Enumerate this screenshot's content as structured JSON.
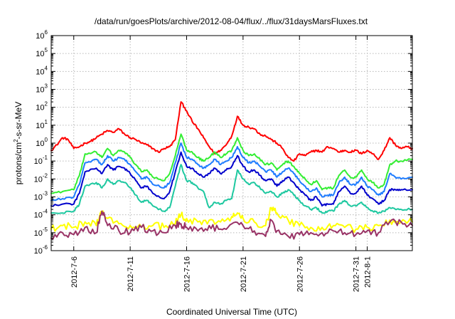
{
  "chart_data": {
    "type": "line",
    "title": "/data/run/goesPlots/archive/2012-08-04/flux/../flux/31daysMarsFluxes.txt",
    "xlabel": "Coordinated Universal Time (UTC)",
    "ylabel_parts": {
      "base": "protons/cm",
      "sup": "2",
      "rest": "-s-sr-MeV"
    },
    "xlim": [
      "2012-07-04",
      "2012-08-05"
    ],
    "ylim_exp": [
      -6,
      6
    ],
    "y_scale": "log",
    "grid": true,
    "x_ticks": [
      {
        "date": "2012-07-06",
        "label": "2012-7-6"
      },
      {
        "date": "2012-07-11",
        "label": "2012-7-11"
      },
      {
        "date": "2012-07-16",
        "label": "2012-7-16"
      },
      {
        "date": "2012-07-21",
        "label": "2012-7-21"
      },
      {
        "date": "2012-07-26",
        "label": "2012-7-26"
      },
      {
        "date": "2012-07-31",
        "label": "2012-7-31"
      },
      {
        "date": "2012-08-01",
        "label": "2012-8-1"
      }
    ],
    "y_ticks": [
      {
        "exp": 6,
        "base": "10",
        "sup": "6"
      },
      {
        "exp": 5,
        "base": "10",
        "sup": "5"
      },
      {
        "exp": 4,
        "base": "10",
        "sup": "4"
      },
      {
        "exp": 3,
        "base": "10",
        "sup": "3"
      },
      {
        "exp": 2,
        "base": "10",
        "sup": "2"
      },
      {
        "exp": 1,
        "base": "10",
        "sup": "1"
      },
      {
        "exp": 0,
        "base": "10",
        "sup": "0"
      },
      {
        "exp": -1,
        "base": "10",
        "sup": "-1"
      },
      {
        "exp": -2,
        "base": "10",
        "sup": "-2"
      },
      {
        "exp": -3,
        "base": "10",
        "sup": "-3"
      },
      {
        "exp": -4,
        "base": "10",
        "sup": "-4"
      },
      {
        "exp": -5,
        "base": "10",
        "sup": "-5"
      },
      {
        "exp": -6,
        "base": "10",
        "sup": "-6"
      }
    ],
    "series": [
      {
        "color": "#ff0000",
        "x": [
          "2012-07-04",
          "2012-07-04T12:00",
          "2012-07-05",
          "2012-07-05T12:00",
          "2012-07-06",
          "2012-07-06T12:00",
          "2012-07-07",
          "2012-07-07T12:00",
          "2012-07-08",
          "2012-07-08T12:00",
          "2012-07-09",
          "2012-07-09T12:00",
          "2012-07-10",
          "2012-07-10T12:00",
          "2012-07-11",
          "2012-07-11T12:00",
          "2012-07-12",
          "2012-07-12T12:00",
          "2012-07-13",
          "2012-07-13T12:00",
          "2012-07-14",
          "2012-07-14T12:00",
          "2012-07-15",
          "2012-07-15T12:00",
          "2012-07-16",
          "2012-07-16T12:00",
          "2012-07-17",
          "2012-07-17T12:00",
          "2012-07-18",
          "2012-07-18T12:00",
          "2012-07-19",
          "2012-07-19T12:00",
          "2012-07-20",
          "2012-07-20T12:00",
          "2012-07-21",
          "2012-07-21T12:00",
          "2012-07-22",
          "2012-07-22T12:00",
          "2012-07-23",
          "2012-07-23T12:00",
          "2012-07-24",
          "2012-07-24T12:00",
          "2012-07-25",
          "2012-07-25T12:00",
          "2012-07-26",
          "2012-07-26T12:00",
          "2012-07-27",
          "2012-07-27T12:00",
          "2012-07-28",
          "2012-07-28T12:00",
          "2012-07-29",
          "2012-07-29T12:00",
          "2012-07-30",
          "2012-07-30T12:00",
          "2012-07-31",
          "2012-07-31T12:00",
          "2012-08-01",
          "2012-08-01T12:00",
          "2012-08-02",
          "2012-08-02T12:00",
          "2012-08-03",
          "2012-08-03T12:00",
          "2012-08-04",
          "2012-08-04T12:00",
          "2012-08-05"
        ],
        "values_exp": [
          -0.4,
          -0.1,
          0.3,
          0.2,
          -0.3,
          -0.2,
          0.0,
          0.1,
          0.3,
          0.5,
          0.7,
          0.6,
          0.8,
          0.5,
          0.3,
          0.2,
          0.0,
          -0.1,
          -0.3,
          -0.5,
          -0.3,
          -0.2,
          0.2,
          2.3,
          1.8,
          1.2,
          0.8,
          0.3,
          -0.2,
          -0.6,
          -0.4,
          -0.1,
          0.4,
          1.5,
          1.0,
          0.9,
          0.8,
          0.5,
          0.4,
          0.2,
          0.0,
          -0.3,
          -0.8,
          -1.0,
          -0.6,
          -0.7,
          -0.5,
          -0.4,
          -0.5,
          -0.2,
          -0.3,
          -0.5,
          -0.4,
          -0.5,
          -0.4,
          -0.6,
          -0.4,
          -0.6,
          -0.9,
          -0.4,
          0.3,
          -0.1,
          -0.3,
          -0.2,
          -0.3
        ]
      },
      {
        "color": "#33ee33",
        "x": [
          "2012-07-04",
          "2012-07-05",
          "2012-07-06",
          "2012-07-06T12:00",
          "2012-07-07",
          "2012-07-08",
          "2012-07-08T12:00",
          "2012-07-09",
          "2012-07-09T12:00",
          "2012-07-10",
          "2012-07-10T12:00",
          "2012-07-11",
          "2012-07-11T12:00",
          "2012-07-12",
          "2012-07-12T12:00",
          "2012-07-13",
          "2012-07-14",
          "2012-07-14T12:00",
          "2012-07-15",
          "2012-07-15T12:00",
          "2012-07-16",
          "2012-07-16T12:00",
          "2012-07-17",
          "2012-07-17T12:00",
          "2012-07-18",
          "2012-07-18T12:00",
          "2012-07-19",
          "2012-07-19T12:00",
          "2012-07-20",
          "2012-07-20T12:00",
          "2012-07-21",
          "2012-07-21T12:00",
          "2012-07-22",
          "2012-07-22T12:00",
          "2012-07-23",
          "2012-07-23T12:00",
          "2012-07-24",
          "2012-07-24T12:00",
          "2012-07-25",
          "2012-07-25T12:00",
          "2012-07-26",
          "2012-07-26T12:00",
          "2012-07-27",
          "2012-07-27T12:00",
          "2012-07-28",
          "2012-07-28T12:00",
          "2012-07-29",
          "2012-07-29T12:00",
          "2012-07-30",
          "2012-07-30T12:00",
          "2012-07-31",
          "2012-07-31T12:00",
          "2012-08-01",
          "2012-08-01T12:00",
          "2012-08-02",
          "2012-08-02T12:00",
          "2012-08-03",
          "2012-08-03T12:00",
          "2012-08-04",
          "2012-08-05"
        ],
        "values_exp": [
          -2.8,
          -2.7,
          -2.6,
          -1.8,
          -0.6,
          -0.5,
          -0.8,
          -0.3,
          -0.7,
          -0.4,
          -0.5,
          -0.8,
          -1.2,
          -1.6,
          -1.5,
          -1.9,
          -2.1,
          -1.7,
          -0.7,
          0.5,
          -0.4,
          -0.5,
          -0.8,
          -1.0,
          -0.8,
          -0.5,
          -0.8,
          -0.6,
          -0.4,
          0.3,
          -0.4,
          -0.7,
          -0.6,
          -0.9,
          -1.2,
          -1.1,
          -1.5,
          -1.2,
          -1.0,
          -1.3,
          -1.7,
          -2.0,
          -2.3,
          -2.1,
          -2.6,
          -2.5,
          -2.5,
          -1.8,
          -1.5,
          -1.9,
          -1.9,
          -1.5,
          -2.0,
          -2.2,
          -2.5,
          -2.3,
          -1.2,
          -1.0,
          -1.0,
          -0.9
        ]
      },
      {
        "color": "#1e7cff",
        "x": [
          "2012-07-04",
          "2012-07-05",
          "2012-07-06",
          "2012-07-06T12:00",
          "2012-07-07",
          "2012-07-08",
          "2012-07-08T12:00",
          "2012-07-09",
          "2012-07-09T12:00",
          "2012-07-10",
          "2012-07-10T12:00",
          "2012-07-11",
          "2012-07-11T12:00",
          "2012-07-12",
          "2012-07-12T12:00",
          "2012-07-13",
          "2012-07-14",
          "2012-07-14T12:00",
          "2012-07-15",
          "2012-07-15T12:00",
          "2012-07-16",
          "2012-07-16T12:00",
          "2012-07-17",
          "2012-07-17T12:00",
          "2012-07-18",
          "2012-07-18T12:00",
          "2012-07-19",
          "2012-07-19T12:00",
          "2012-07-20",
          "2012-07-20T12:00",
          "2012-07-21",
          "2012-07-21T12:00",
          "2012-07-22",
          "2012-07-22T12:00",
          "2012-07-23",
          "2012-07-23T12:00",
          "2012-07-24",
          "2012-07-24T12:00",
          "2012-07-25",
          "2012-07-25T12:00",
          "2012-07-26",
          "2012-07-26T12:00",
          "2012-07-27",
          "2012-07-27T12:00",
          "2012-07-28",
          "2012-07-28T12:00",
          "2012-07-29",
          "2012-07-29T12:00",
          "2012-07-30",
          "2012-07-30T12:00",
          "2012-07-31",
          "2012-07-31T12:00",
          "2012-08-01",
          "2012-08-01T12:00",
          "2012-08-02",
          "2012-08-02T12:00",
          "2012-08-03",
          "2012-08-03T12:00",
          "2012-08-04",
          "2012-08-05"
        ],
        "values_exp": [
          -3.2,
          -3.1,
          -3.0,
          -2.3,
          -1.1,
          -0.9,
          -1.2,
          -0.7,
          -1.0,
          -0.8,
          -0.9,
          -1.2,
          -1.6,
          -2.0,
          -1.9,
          -2.3,
          -2.5,
          -2.2,
          -1.1,
          0.0,
          -0.8,
          -0.9,
          -1.2,
          -1.4,
          -1.2,
          -0.9,
          -1.2,
          -1.0,
          -0.8,
          -0.2,
          -0.8,
          -1.1,
          -1.0,
          -1.3,
          -1.6,
          -1.5,
          -1.9,
          -1.6,
          -1.4,
          -1.7,
          -2.1,
          -2.4,
          -2.7,
          -2.5,
          -3.0,
          -2.9,
          -2.9,
          -2.2,
          -1.9,
          -2.3,
          -2.3,
          -1.9,
          -2.4,
          -2.6,
          -2.9,
          -2.7,
          -1.7,
          -1.9,
          -2.0,
          -1.9
        ]
      },
      {
        "color": "#0000cc",
        "x": [
          "2012-07-04",
          "2012-07-05",
          "2012-07-06",
          "2012-07-06T12:00",
          "2012-07-07",
          "2012-07-08",
          "2012-07-08T12:00",
          "2012-07-09",
          "2012-07-09T12:00",
          "2012-07-10",
          "2012-07-10T12:00",
          "2012-07-11",
          "2012-07-11T12:00",
          "2012-07-12",
          "2012-07-12T12:00",
          "2012-07-13",
          "2012-07-14",
          "2012-07-14T12:00",
          "2012-07-15",
          "2012-07-15T12:00",
          "2012-07-16",
          "2012-07-16T12:00",
          "2012-07-17",
          "2012-07-17T12:00",
          "2012-07-18",
          "2012-07-18T12:00",
          "2012-07-19",
          "2012-07-19T12:00",
          "2012-07-20",
          "2012-07-20T12:00",
          "2012-07-21",
          "2012-07-21T12:00",
          "2012-07-22",
          "2012-07-22T12:00",
          "2012-07-23",
          "2012-07-23T12:00",
          "2012-07-24",
          "2012-07-24T12:00",
          "2012-07-25",
          "2012-07-25T12:00",
          "2012-07-26",
          "2012-07-26T12:00",
          "2012-07-27",
          "2012-07-27T12:00",
          "2012-07-28",
          "2012-07-28T12:00",
          "2012-07-29",
          "2012-07-29T12:00",
          "2012-07-30",
          "2012-07-30T12:00",
          "2012-07-31",
          "2012-07-31T12:00",
          "2012-08-01",
          "2012-08-01T12:00",
          "2012-08-02",
          "2012-08-02T12:00",
          "2012-08-03",
          "2012-08-03T12:00",
          "2012-08-04",
          "2012-08-05"
        ],
        "values_exp": [
          -3.5,
          -3.4,
          -3.4,
          -2.8,
          -1.6,
          -1.4,
          -1.7,
          -1.2,
          -1.5,
          -1.3,
          -1.4,
          -1.7,
          -2.1,
          -2.5,
          -2.4,
          -2.8,
          -3.1,
          -2.7,
          -1.6,
          -0.5,
          -1.3,
          -1.4,
          -1.7,
          -1.9,
          -1.7,
          -1.4,
          -1.7,
          -1.5,
          -1.3,
          -0.7,
          -1.3,
          -1.6,
          -1.5,
          -1.8,
          -2.1,
          -2.0,
          -2.4,
          -2.1,
          -1.9,
          -2.2,
          -2.6,
          -2.9,
          -3.2,
          -3.0,
          -3.5,
          -3.4,
          -3.4,
          -2.7,
          -2.4,
          -2.8,
          -2.8,
          -2.4,
          -2.9,
          -3.1,
          -3.4,
          -3.2,
          -2.6,
          -2.6,
          -2.6,
          -2.6
        ]
      },
      {
        "color": "#1ec8a0",
        "x": [
          "2012-07-04",
          "2012-07-05",
          "2012-07-06",
          "2012-07-06T12:00",
          "2012-07-07",
          "2012-07-08",
          "2012-07-08T12:00",
          "2012-07-09",
          "2012-07-09T12:00",
          "2012-07-10",
          "2012-07-10T12:00",
          "2012-07-11",
          "2012-07-11T12:00",
          "2012-07-12",
          "2012-07-12T12:00",
          "2012-07-13",
          "2012-07-14",
          "2012-07-14T12:00",
          "2012-07-15",
          "2012-07-15T12:00",
          "2012-07-16",
          "2012-07-16T12:00",
          "2012-07-17",
          "2012-07-17T12:00",
          "2012-07-18",
          "2012-07-18T12:00",
          "2012-07-19",
          "2012-07-19T12:00",
          "2012-07-20",
          "2012-07-20T12:00",
          "2012-07-21",
          "2012-07-21T12:00",
          "2012-07-22",
          "2012-07-22T12:00",
          "2012-07-23",
          "2012-07-23T12:00",
          "2012-07-24",
          "2012-07-24T12:00",
          "2012-07-25",
          "2012-07-25T12:00",
          "2012-07-26",
          "2012-07-26T12:00",
          "2012-07-27",
          "2012-07-27T12:00",
          "2012-07-28",
          "2012-07-28T12:00",
          "2012-07-29",
          "2012-07-29T12:00",
          "2012-07-30",
          "2012-07-30T12:00",
          "2012-07-31",
          "2012-07-31T12:00",
          "2012-08-01",
          "2012-08-01T12:00",
          "2012-08-02",
          "2012-08-02T12:00",
          "2012-08-03",
          "2012-08-03T12:00",
          "2012-08-04",
          "2012-08-05"
        ],
        "values_exp": [
          -3.9,
          -3.9,
          -3.8,
          -3.4,
          -2.4,
          -2.2,
          -2.5,
          -2.0,
          -2.3,
          -2.1,
          -2.2,
          -2.5,
          -2.9,
          -3.3,
          -3.2,
          -3.5,
          -3.8,
          -3.6,
          -2.4,
          -1.2,
          -2.1,
          -2.2,
          -2.5,
          -2.7,
          -3.6,
          -3.3,
          -3.4,
          -3.2,
          -3.1,
          -1.5,
          -2.0,
          -2.3,
          -2.2,
          -2.5,
          -2.8,
          -2.7,
          -3.0,
          -2.8,
          -2.6,
          -2.9,
          -3.2,
          -3.5,
          -3.7,
          -3.6,
          -3.9,
          -3.8,
          -3.8,
          -3.4,
          -3.2,
          -3.5,
          -3.5,
          -3.3,
          -3.6,
          -3.8,
          -3.9,
          -3.8,
          -3.6,
          -3.7,
          -3.7,
          -3.7
        ]
      },
      {
        "color": "#ffff00",
        "x": [
          "2012-07-04",
          "2012-07-05",
          "2012-07-06",
          "2012-07-07",
          "2012-07-08",
          "2012-07-08T12:00",
          "2012-07-09",
          "2012-07-10",
          "2012-07-11",
          "2012-07-12",
          "2012-07-13",
          "2012-07-14",
          "2012-07-15",
          "2012-07-15T12:00",
          "2012-07-16",
          "2012-07-17",
          "2012-07-18",
          "2012-07-19",
          "2012-07-20",
          "2012-07-20T12:00",
          "2012-07-21",
          "2012-07-22",
          "2012-07-23",
          "2012-07-23T12:00",
          "2012-07-24",
          "2012-07-25",
          "2012-07-26",
          "2012-07-27",
          "2012-07-28",
          "2012-07-29",
          "2012-07-30",
          "2012-07-31",
          "2012-08-01",
          "2012-08-02",
          "2012-08-03",
          "2012-08-04",
          "2012-08-05"
        ],
        "values_exp": [
          -4.8,
          -4.6,
          -4.7,
          -4.4,
          -4.6,
          -3.8,
          -4.2,
          -4.5,
          -4.6,
          -4.7,
          -4.6,
          -4.7,
          -4.5,
          -4.0,
          -4.2,
          -4.4,
          -4.3,
          -4.4,
          -4.1,
          -3.9,
          -4.2,
          -4.4,
          -4.6,
          -3.6,
          -3.9,
          -4.3,
          -4.6,
          -4.7,
          -4.7,
          -4.6,
          -4.7,
          -4.8,
          -4.7,
          -4.6,
          -4.3,
          -4.4,
          -4.4
        ]
      },
      {
        "color": "#993366",
        "x": [
          "2012-07-04",
          "2012-07-05",
          "2012-07-06",
          "2012-07-07",
          "2012-07-08",
          "2012-07-08T12:00",
          "2012-07-09",
          "2012-07-10",
          "2012-07-11",
          "2012-07-12",
          "2012-07-13",
          "2012-07-14",
          "2012-07-15",
          "2012-07-15T12:00",
          "2012-07-16",
          "2012-07-17",
          "2012-07-18",
          "2012-07-19",
          "2012-07-20",
          "2012-07-21",
          "2012-07-22",
          "2012-07-23",
          "2012-07-23T12:00",
          "2012-07-24",
          "2012-07-25",
          "2012-07-26",
          "2012-07-27",
          "2012-07-28",
          "2012-07-29",
          "2012-07-30",
          "2012-07-31",
          "2012-08-01",
          "2012-08-02",
          "2012-08-03",
          "2012-08-04",
          "2012-08-05"
        ],
        "values_exp": [
          -5.3,
          -5.0,
          -5.1,
          -4.7,
          -5.0,
          -3.8,
          -4.6,
          -4.9,
          -5.0,
          -4.7,
          -4.9,
          -5.0,
          -4.6,
          -4.5,
          -4.7,
          -4.9,
          -4.6,
          -4.8,
          -4.5,
          -4.6,
          -4.9,
          -5.2,
          -4.3,
          -4.9,
          -5.2,
          -5.1,
          -5.0,
          -5.0,
          -4.9,
          -5.0,
          -5.1,
          -4.9,
          -5.0,
          -4.4,
          -4.4,
          -4.6
        ]
      }
    ]
  }
}
